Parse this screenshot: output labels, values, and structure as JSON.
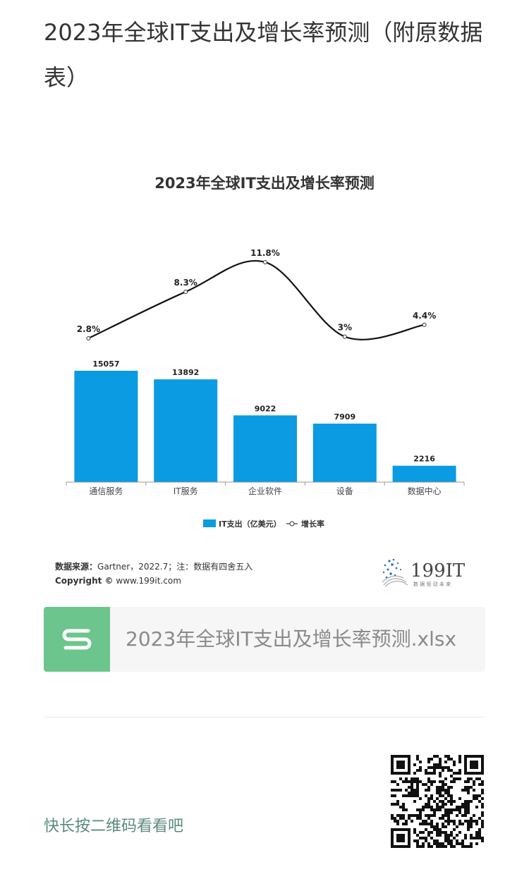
{
  "article": {
    "title": "2023年全球IT支出及增长率预测（附原数据表）"
  },
  "chart_image": {
    "chart_data": {
      "type": "bar",
      "title": "2023年全球IT支出及增长率预测",
      "categories": [
        "通信服务",
        "IT服务",
        "企业软件",
        "设备",
        "数据中心"
      ],
      "series": [
        {
          "name": "IT支出（亿美元）",
          "type": "bar",
          "values": [
            15057,
            13892,
            9022,
            7909,
            2216
          ],
          "labels": [
            "15057",
            "13892",
            "9022",
            "7909",
            "2216"
          ],
          "color": "#0a9be3"
        },
        {
          "name": "增长率",
          "type": "line",
          "values": [
            2.8,
            8.3,
            11.8,
            3,
            4.4
          ],
          "labels": [
            "2.8%",
            "8.3%",
            "11.8%",
            "3%",
            "4.4%"
          ],
          "color": "#111111"
        }
      ],
      "legend": "bottom-center",
      "grid": false
    },
    "source_label": "数据来源：",
    "source_text": "Gartner，2022.7；注：数据有四舍五入",
    "copyright_label": "Copyright ©",
    "copyright_text": "www.199it.com",
    "logo_text": "199IT",
    "logo_tagline": "数 据 驱 动 未 来"
  },
  "attachment": {
    "icon": "spreadsheet-s-icon",
    "file_name": "2023年全球IT支出及增长率预测.xlsx",
    "icon_color": "#6cc58c"
  },
  "footer": {
    "qr_hint": "快长按二维码看看吧",
    "qr_icon": "qr-code-icon"
  }
}
